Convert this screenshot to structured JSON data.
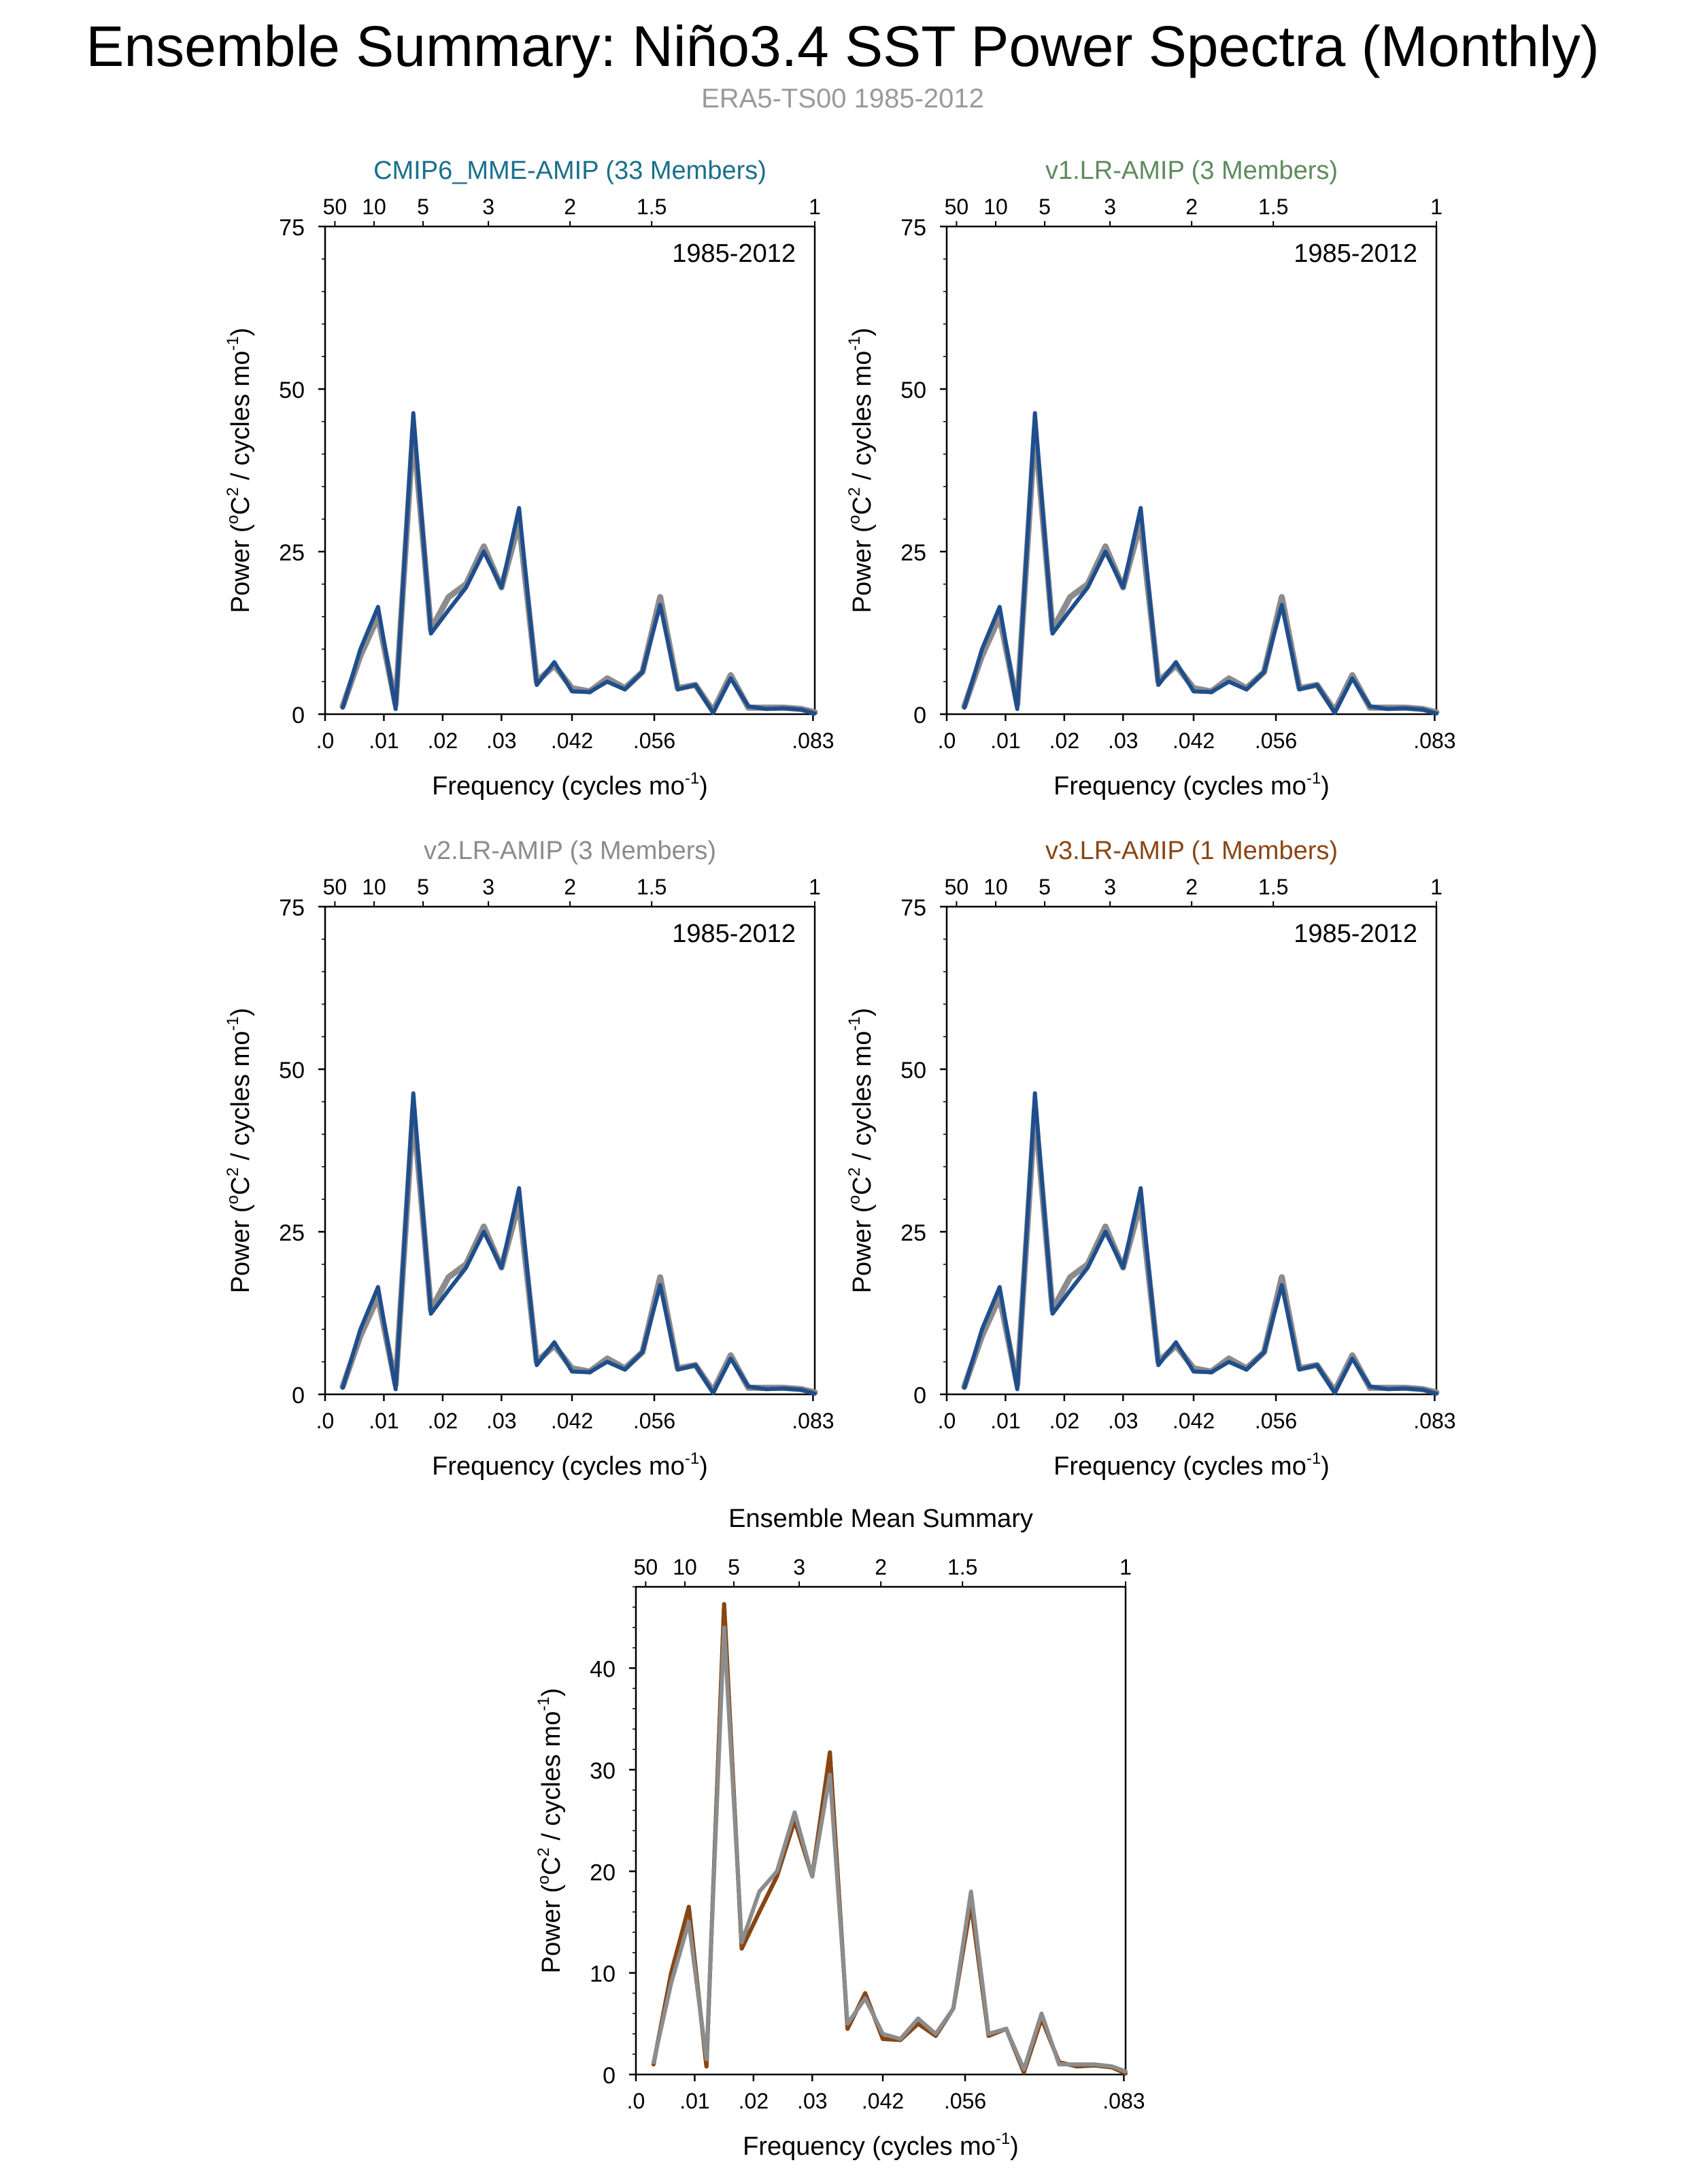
{
  "header": {
    "title": "Ensemble Summary: Niño3.4 SST Power Spectra (Monthly)",
    "subtitle": "ERA5-TS00 1985-2012"
  },
  "colors": {
    "background": "#ffffff",
    "observed_line": "#8c8c8c",
    "cmip6_title": "#1a6f8c",
    "v1_title": "#5f8a5f",
    "v2_title": "#8c8c8c",
    "v3_title": "#8a4513",
    "model_line": "#1f4e8c",
    "v3_line": "#8a4513",
    "axis": "#000000"
  },
  "axis_text": {
    "xlabel_main": "Frequency (cycles mo",
    "xlabel_sup": "-1",
    "xlabel_end": ")",
    "ylabel_main": "Power (",
    "ylabel_sup_o": "o",
    "ylabel_C": "C",
    "ylabel_sup_2": "2",
    "ylabel_mid": " / cycles mo",
    "ylabel_sup_neg1": "-1",
    "ylabel_end": ")"
  },
  "chart_data": [
    {
      "type": "line",
      "title": "CMIP6_MME-AMIP (33 Members)",
      "title_color": "#1a6f8c",
      "period_label": "1985-2012",
      "xlim": [
        0,
        0.0833
      ],
      "ylim": [
        0,
        75
      ],
      "yticks": [
        0,
        25,
        50,
        75
      ],
      "xticks": [
        0,
        0.01,
        0.02,
        0.03,
        0.042,
        0.056,
        0.083
      ],
      "xtick_labels": [
        ".0",
        ".01",
        ".02",
        ".03",
        ".042",
        ".056",
        ".083"
      ],
      "top_ticks": [
        0.02,
        0.1,
        0.2,
        0.3333,
        0.5,
        0.6667,
        1.0
      ],
      "top_tick_labels": [
        "50",
        "10",
        "5",
        "3",
        "2",
        "1.5",
        "1"
      ],
      "x": [
        0.003,
        0.006,
        0.009,
        0.012,
        0.015,
        0.018,
        0.021,
        0.024,
        0.027,
        0.03,
        0.033,
        0.036,
        0.039,
        0.042,
        0.045,
        0.048,
        0.051,
        0.054,
        0.057,
        0.06,
        0.063,
        0.066,
        0.069,
        0.072,
        0.075,
        0.078,
        0.081,
        0.0833
      ],
      "series": [
        {
          "name": "ERA5-TS00",
          "color": "#8c8c8c",
          "values": [
            1.2,
            9.0,
            15.0,
            1.5,
            44.0,
            13.0,
            18.0,
            20.0,
            25.8,
            19.5,
            29.5,
            5.0,
            7.5,
            4.0,
            3.5,
            5.5,
            4.0,
            6.5,
            18.0,
            4.0,
            4.5,
            0.5,
            6.0,
            1.0,
            1.0,
            1.0,
            0.8,
            0.3
          ]
        },
        {
          "name": "CMIP6_MME-AMIP",
          "color": "#1f4e8c",
          "values": [
            1.0,
            10.0,
            16.5,
            0.8,
            46.3,
            12.4,
            16.0,
            19.5,
            25.0,
            19.5,
            31.7,
            4.5,
            8.0,
            3.5,
            3.4,
            5.0,
            3.8,
            6.5,
            16.8,
            3.8,
            4.5,
            0.2,
            5.5,
            1.2,
            0.8,
            0.9,
            0.7,
            0.1
          ]
        }
      ]
    },
    {
      "type": "line",
      "title": "v1.LR-AMIP (3 Members)",
      "title_color": "#5f8a5f",
      "period_label": "1985-2012",
      "xlim": [
        0,
        0.0833
      ],
      "ylim": [
        0,
        75
      ],
      "yticks": [
        0,
        25,
        50,
        75
      ],
      "xticks": [
        0,
        0.01,
        0.02,
        0.03,
        0.042,
        0.056,
        0.083
      ],
      "xtick_labels": [
        ".0",
        ".01",
        ".02",
        ".03",
        ".042",
        ".056",
        ".083"
      ],
      "top_ticks": [
        0.02,
        0.1,
        0.2,
        0.3333,
        0.5,
        0.6667,
        1.0
      ],
      "top_tick_labels": [
        "50",
        "10",
        "5",
        "3",
        "2",
        "1.5",
        "1"
      ],
      "x": [
        0.003,
        0.006,
        0.009,
        0.012,
        0.015,
        0.018,
        0.021,
        0.024,
        0.027,
        0.03,
        0.033,
        0.036,
        0.039,
        0.042,
        0.045,
        0.048,
        0.051,
        0.054,
        0.057,
        0.06,
        0.063,
        0.066,
        0.069,
        0.072,
        0.075,
        0.078,
        0.081,
        0.0833
      ],
      "series": [
        {
          "name": "ERA5-TS00",
          "color": "#8c8c8c",
          "values": [
            1.2,
            9.0,
            15.0,
            1.5,
            44.0,
            13.0,
            18.0,
            20.0,
            25.8,
            19.5,
            29.5,
            5.0,
            7.5,
            4.0,
            3.5,
            5.5,
            4.0,
            6.5,
            18.0,
            4.0,
            4.5,
            0.5,
            6.0,
            1.0,
            1.0,
            1.0,
            0.8,
            0.3
          ]
        },
        {
          "name": "v1.LR-AMIP",
          "color": "#1f4e8c",
          "values": [
            1.0,
            10.0,
            16.5,
            0.8,
            46.3,
            12.4,
            16.0,
            19.5,
            25.0,
            19.5,
            31.7,
            4.5,
            8.0,
            3.5,
            3.4,
            5.0,
            3.8,
            6.5,
            16.8,
            3.8,
            4.5,
            0.2,
            5.5,
            1.2,
            0.8,
            0.9,
            0.7,
            0.1
          ]
        }
      ]
    },
    {
      "type": "line",
      "title": "v2.LR-AMIP (3 Members)",
      "title_color": "#8c8c8c",
      "period_label": "1985-2012",
      "xlim": [
        0,
        0.0833
      ],
      "ylim": [
        0,
        75
      ],
      "yticks": [
        0,
        25,
        50,
        75
      ],
      "xticks": [
        0,
        0.01,
        0.02,
        0.03,
        0.042,
        0.056,
        0.083
      ],
      "xtick_labels": [
        ".0",
        ".01",
        ".02",
        ".03",
        ".042",
        ".056",
        ".083"
      ],
      "top_ticks": [
        0.02,
        0.1,
        0.2,
        0.3333,
        0.5,
        0.6667,
        1.0
      ],
      "top_tick_labels": [
        "50",
        "10",
        "5",
        "3",
        "2",
        "1.5",
        "1"
      ],
      "x": [
        0.003,
        0.006,
        0.009,
        0.012,
        0.015,
        0.018,
        0.021,
        0.024,
        0.027,
        0.03,
        0.033,
        0.036,
        0.039,
        0.042,
        0.045,
        0.048,
        0.051,
        0.054,
        0.057,
        0.06,
        0.063,
        0.066,
        0.069,
        0.072,
        0.075,
        0.078,
        0.081,
        0.0833
      ],
      "series": [
        {
          "name": "ERA5-TS00",
          "color": "#8c8c8c",
          "values": [
            1.2,
            9.0,
            15.0,
            1.5,
            44.0,
            13.0,
            18.0,
            20.0,
            25.8,
            19.5,
            29.5,
            5.0,
            7.5,
            4.0,
            3.5,
            5.5,
            4.0,
            6.5,
            18.0,
            4.0,
            4.5,
            0.5,
            6.0,
            1.0,
            1.0,
            1.0,
            0.8,
            0.3
          ]
        },
        {
          "name": "v2.LR-AMIP",
          "color": "#1f4e8c",
          "values": [
            1.0,
            10.0,
            16.5,
            0.8,
            46.3,
            12.4,
            16.0,
            19.5,
            25.0,
            19.5,
            31.7,
            4.5,
            8.0,
            3.5,
            3.4,
            5.0,
            3.8,
            6.5,
            16.8,
            3.8,
            4.5,
            0.2,
            5.5,
            1.2,
            0.8,
            0.9,
            0.7,
            0.1
          ]
        }
      ]
    },
    {
      "type": "line",
      "title": "v3.LR-AMIP (1 Members)",
      "title_color": "#8a4513",
      "period_label": "1985-2012",
      "xlim": [
        0,
        0.0833
      ],
      "ylim": [
        0,
        75
      ],
      "yticks": [
        0,
        25,
        50,
        75
      ],
      "xticks": [
        0,
        0.01,
        0.02,
        0.03,
        0.042,
        0.056,
        0.083
      ],
      "xtick_labels": [
        ".0",
        ".01",
        ".02",
        ".03",
        ".042",
        ".056",
        ".083"
      ],
      "top_ticks": [
        0.02,
        0.1,
        0.2,
        0.3333,
        0.5,
        0.6667,
        1.0
      ],
      "top_tick_labels": [
        "50",
        "10",
        "5",
        "3",
        "2",
        "1.5",
        "1"
      ],
      "x": [
        0.003,
        0.006,
        0.009,
        0.012,
        0.015,
        0.018,
        0.021,
        0.024,
        0.027,
        0.03,
        0.033,
        0.036,
        0.039,
        0.042,
        0.045,
        0.048,
        0.051,
        0.054,
        0.057,
        0.06,
        0.063,
        0.066,
        0.069,
        0.072,
        0.075,
        0.078,
        0.081,
        0.0833
      ],
      "series": [
        {
          "name": "ERA5-TS00",
          "color": "#8c8c8c",
          "values": [
            1.2,
            9.0,
            15.0,
            1.5,
            44.0,
            13.0,
            18.0,
            20.0,
            25.8,
            19.5,
            29.5,
            5.0,
            7.5,
            4.0,
            3.5,
            5.5,
            4.0,
            6.5,
            18.0,
            4.0,
            4.5,
            0.5,
            6.0,
            1.0,
            1.0,
            1.0,
            0.8,
            0.3
          ]
        },
        {
          "name": "v3.LR-AMIP",
          "color": "#1f4e8c",
          "values": [
            1.0,
            10.0,
            16.5,
            0.8,
            46.3,
            12.4,
            16.0,
            19.5,
            25.0,
            19.5,
            31.7,
            4.5,
            8.0,
            3.5,
            3.4,
            5.0,
            3.8,
            6.5,
            16.8,
            3.8,
            4.5,
            0.2,
            5.5,
            1.2,
            0.8,
            0.9,
            0.7,
            0.1
          ]
        }
      ]
    },
    {
      "type": "line",
      "title": "Ensemble Mean Summary",
      "title_color": "#000000",
      "period_label": "",
      "xlim": [
        0,
        0.0833
      ],
      "ylim": [
        0,
        48
      ],
      "yticks": [
        0,
        10,
        20,
        30,
        40
      ],
      "xticks": [
        0,
        0.01,
        0.02,
        0.03,
        0.042,
        0.056,
        0.083
      ],
      "xtick_labels": [
        ".0",
        ".01",
        ".02",
        ".03",
        ".042",
        ".056",
        ".083"
      ],
      "top_ticks": [
        0.02,
        0.1,
        0.2,
        0.3333,
        0.5,
        0.6667,
        1.0
      ],
      "top_tick_labels": [
        "50",
        "10",
        "5",
        "3",
        "2",
        "1.5",
        "1"
      ],
      "x": [
        0.003,
        0.006,
        0.009,
        0.012,
        0.015,
        0.018,
        0.021,
        0.024,
        0.027,
        0.03,
        0.033,
        0.036,
        0.039,
        0.042,
        0.045,
        0.048,
        0.051,
        0.054,
        0.057,
        0.06,
        0.063,
        0.066,
        0.069,
        0.072,
        0.075,
        0.078,
        0.081,
        0.0833
      ],
      "series": [
        {
          "name": "CMIP6_MME-AMIP",
          "color": "#1a6f8c",
          "values": [
            1.0,
            10.0,
            16.5,
            0.8,
            46.3,
            12.4,
            16.0,
            19.5,
            25.0,
            19.5,
            31.7,
            4.5,
            8.0,
            3.5,
            3.4,
            5.0,
            3.8,
            6.5,
            16.8,
            3.8,
            4.5,
            0.2,
            5.5,
            1.2,
            0.8,
            0.9,
            0.7,
            0.1
          ]
        },
        {
          "name": "v1.LR-AMIP",
          "color": "#5f8a5f",
          "values": [
            1.0,
            10.0,
            16.5,
            0.8,
            46.3,
            12.4,
            16.0,
            19.5,
            25.0,
            19.5,
            31.7,
            4.5,
            8.0,
            3.5,
            3.4,
            5.0,
            3.8,
            6.5,
            16.8,
            3.8,
            4.5,
            0.2,
            5.5,
            1.2,
            0.8,
            0.9,
            0.7,
            0.1
          ]
        },
        {
          "name": "v3.LR-AMIP",
          "color": "#8a4513",
          "values": [
            1.0,
            10.0,
            16.5,
            0.8,
            46.3,
            12.4,
            16.0,
            19.5,
            25.0,
            19.5,
            31.7,
            4.5,
            8.0,
            3.5,
            3.4,
            5.0,
            3.8,
            6.5,
            16.8,
            3.8,
            4.5,
            0.2,
            5.5,
            1.2,
            0.8,
            0.9,
            0.7,
            0.1
          ]
        },
        {
          "name": "v2.LR-AMIP",
          "color": "#8c8c8c",
          "values": [
            1.2,
            9.0,
            15.0,
            1.5,
            44.0,
            13.0,
            18.0,
            20.0,
            25.8,
            19.5,
            29.5,
            5.0,
            7.5,
            4.0,
            3.5,
            5.5,
            4.0,
            6.5,
            18.0,
            4.0,
            4.5,
            0.5,
            6.0,
            1.0,
            1.0,
            1.0,
            0.8,
            0.3
          ]
        }
      ]
    }
  ]
}
